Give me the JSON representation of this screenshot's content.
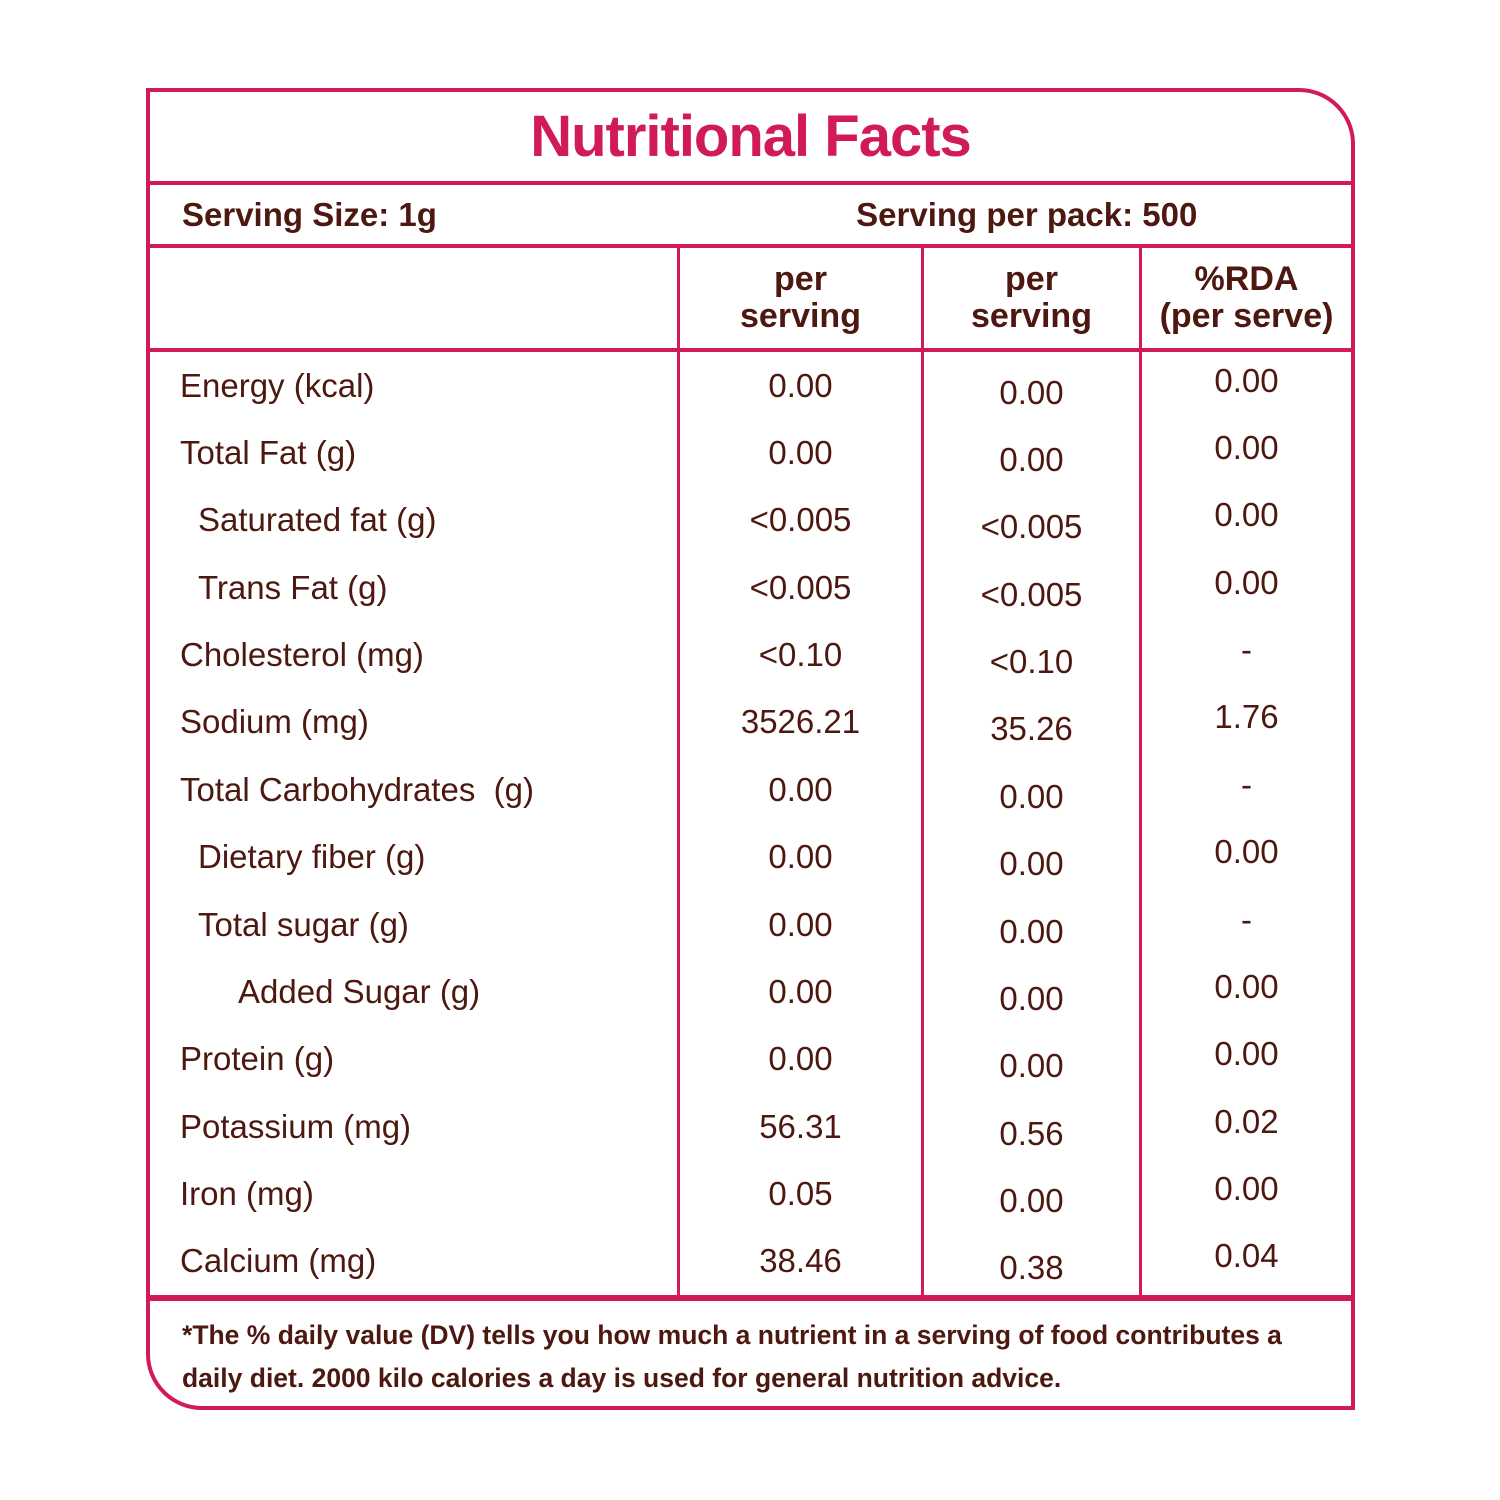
{
  "title": "Nutritional Facts",
  "serving": {
    "size_label": "Serving Size: 1g",
    "pack_label": "Serving per pack: 500"
  },
  "table_header": {
    "col2": [
      "per",
      "serving"
    ],
    "col3": [
      "per",
      "serving"
    ],
    "col4": [
      "%RDA",
      "(per serve)"
    ]
  },
  "rows": [
    {
      "label": "Energy (kcal)",
      "indent": 0,
      "per_serving_1": "0.00",
      "per_serving_2": "0.00",
      "rda": "0.00"
    },
    {
      "label": "Total Fat (g)",
      "indent": 0,
      "per_serving_1": "0.00",
      "per_serving_2": "0.00",
      "rda": "0.00"
    },
    {
      "label": "Saturated fat (g)",
      "indent": 1,
      "per_serving_1": "<0.005",
      "per_serving_2": "<0.005",
      "rda": "0.00"
    },
    {
      "label": "Trans Fat (g)",
      "indent": 1,
      "per_serving_1": "<0.005",
      "per_serving_2": "<0.005",
      "rda": "0.00"
    },
    {
      "label": "Cholesterol (mg)",
      "indent": 0,
      "per_serving_1": "<0.10",
      "per_serving_2": "<0.10",
      "rda": "-"
    },
    {
      "label": "Sodium (mg)",
      "indent": 0,
      "per_serving_1": "3526.21",
      "per_serving_2": "35.26",
      "rda": "1.76"
    },
    {
      "label": "Total Carbohydrates  (g)",
      "indent": 0,
      "per_serving_1": "0.00",
      "per_serving_2": "0.00",
      "rda": "-"
    },
    {
      "label": "Dietary fiber (g)",
      "indent": 1,
      "per_serving_1": "0.00",
      "per_serving_2": "0.00",
      "rda": "0.00"
    },
    {
      "label": "Total sugar (g)",
      "indent": 1,
      "per_serving_1": "0.00",
      "per_serving_2": "0.00",
      "rda": "-"
    },
    {
      "label": "Added Sugar (g)",
      "indent": 2,
      "per_serving_1": "0.00",
      "per_serving_2": "0.00",
      "rda": "0.00"
    },
    {
      "label": "Protein (g)",
      "indent": 0,
      "per_serving_1": "0.00",
      "per_serving_2": "0.00",
      "rda": "0.00"
    },
    {
      "label": "Potassium (mg)",
      "indent": 0,
      "per_serving_1": "56.31",
      "per_serving_2": "0.56",
      "rda": "0.02"
    },
    {
      "label": "Iron (mg)",
      "indent": 0,
      "per_serving_1": "0.05",
      "per_serving_2": "0.00",
      "rda": "0.00"
    },
    {
      "label": "Calcium (mg)",
      "indent": 0,
      "per_serving_1": "38.46",
      "per_serving_2": "0.38",
      "rda": "0.04"
    }
  ],
  "footnote_lines": [
    "*The % daily value (DV) tells you how much a nutrient in a serving of food contributes a",
    "daily diet. 2000 kilo calories a day is used for general nutrition advice."
  ],
  "colors": {
    "accent": "#D11A58",
    "text": "#4C1810"
  }
}
